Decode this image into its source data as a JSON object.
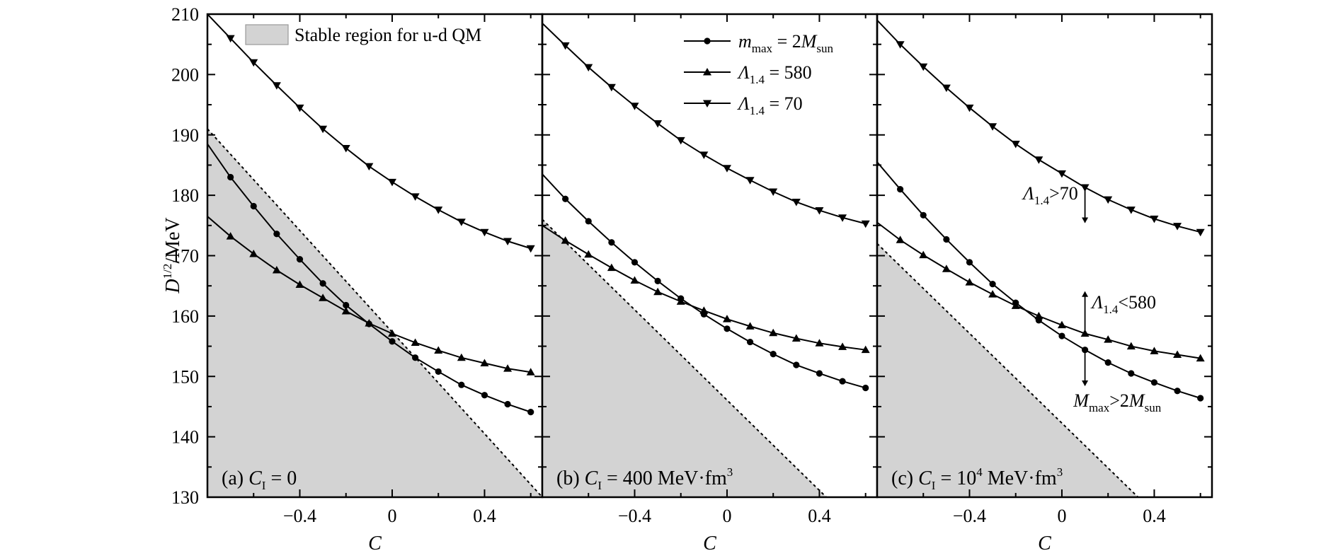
{
  "chart_data": {
    "type": "line",
    "y_axis": {
      "label_main": "D",
      "label_sup": "1/2",
      "label_rest": "/MeV",
      "ticks": [
        130,
        140,
        150,
        160,
        170,
        180,
        190,
        200,
        210
      ],
      "range": [
        130,
        210
      ]
    },
    "x_axis": {
      "label": "C",
      "ticks": [
        -0.4,
        0,
        0.4
      ],
      "tick_labels": [
        "−0.4",
        "0",
        "0.4"
      ],
      "range": [
        -0.8,
        0.65
      ]
    },
    "legend": {
      "shade_label": "Stable region for u-d QM",
      "entries": [
        {
          "marker": "circle",
          "main": "m",
          "sub1": "max",
          "mid": " = 2",
          "main2": "M",
          "sub2": "sun"
        },
        {
          "marker": "triangle-up",
          "main": "Λ",
          "sub1": "1.4",
          "mid": " = 580"
        },
        {
          "marker": "triangle-down",
          "main": "Λ",
          "sub1": "1.4",
          "mid": " = 70"
        }
      ]
    },
    "panels": [
      {
        "label_prefix": "(a) ",
        "label_var": "C",
        "label_sub": "I",
        "label_rest": " = 0",
        "label_sup": "",
        "label_tail": "",
        "boundary": {
          "x": [
            -0.8,
            0.65
          ],
          "y": [
            191,
            130
          ]
        },
        "series": [
          {
            "marker": "circle",
            "x": [
              -0.8,
              -0.7,
              -0.6,
              -0.5,
              -0.4,
              -0.3,
              -0.2,
              -0.1,
              0.0,
              0.1,
              0.2,
              0.3,
              0.4,
              0.5,
              0.6
            ],
            "y": [
              188.5,
              183.0,
              178.2,
              173.6,
              169.4,
              165.4,
              161.8,
              158.7,
              155.8,
              153.1,
              150.8,
              148.6,
              146.9,
              145.4,
              144.1
            ]
          },
          {
            "marker": "triangle-up",
            "x": [
              -0.8,
              -0.7,
              -0.6,
              -0.5,
              -0.4,
              -0.3,
              -0.2,
              -0.1,
              0.0,
              0.1,
              0.2,
              0.3,
              0.4,
              0.5,
              0.6
            ],
            "y": [
              176.5,
              173.2,
              170.3,
              167.6,
              165.2,
              163.0,
              160.8,
              158.8,
              157.1,
              155.6,
              154.3,
              153.1,
              152.2,
              151.3,
              150.7
            ]
          },
          {
            "marker": "triangle-down",
            "x": [
              -0.8,
              -0.7,
              -0.6,
              -0.5,
              -0.4,
              -0.3,
              -0.2,
              -0.1,
              0.0,
              0.1,
              0.2,
              0.3,
              0.4,
              0.5,
              0.6
            ],
            "y": [
              210.0,
              206.0,
              202.0,
              198.2,
              194.5,
              191.0,
              187.8,
              184.8,
              182.2,
              179.8,
              177.6,
              175.6,
              173.9,
              172.4,
              171.2
            ]
          }
        ],
        "annotations": []
      },
      {
        "label_prefix": "(b) ",
        "label_var": "C",
        "label_sub": "I",
        "label_rest": " = 400 MeV·fm",
        "label_sup": "3",
        "label_tail": "",
        "boundary": {
          "x": [
            -0.8,
            0.43
          ],
          "y": [
            176,
            130
          ]
        },
        "series": [
          {
            "marker": "circle",
            "x": [
              -0.8,
              -0.7,
              -0.6,
              -0.5,
              -0.4,
              -0.3,
              -0.2,
              -0.1,
              0.0,
              0.1,
              0.2,
              0.3,
              0.4,
              0.5,
              0.6
            ],
            "y": [
              183.5,
              179.4,
              175.7,
              172.2,
              168.9,
              165.8,
              162.9,
              160.3,
              157.9,
              155.7,
              153.7,
              151.9,
              150.5,
              149.2,
              148.1
            ]
          },
          {
            "marker": "triangle-up",
            "x": [
              -0.8,
              -0.7,
              -0.6,
              -0.5,
              -0.4,
              -0.3,
              -0.2,
              -0.1,
              0.0,
              0.1,
              0.2,
              0.3,
              0.4,
              0.5,
              0.6
            ],
            "y": [
              175.0,
              172.5,
              170.2,
              168.0,
              165.9,
              164.0,
              162.4,
              160.9,
              159.5,
              158.3,
              157.2,
              156.3,
              155.5,
              154.9,
              154.4
            ]
          },
          {
            "marker": "triangle-down",
            "x": [
              -0.8,
              -0.7,
              -0.6,
              -0.5,
              -0.4,
              -0.3,
              -0.2,
              -0.1,
              0.0,
              0.1,
              0.2,
              0.3,
              0.4,
              0.5,
              0.6
            ],
            "y": [
              208.5,
              204.8,
              201.2,
              197.9,
              194.8,
              191.9,
              189.1,
              186.7,
              184.5,
              182.5,
              180.6,
              178.9,
              177.5,
              176.3,
              175.3
            ]
          }
        ],
        "annotations": []
      },
      {
        "label_prefix": "(c) ",
        "label_var": "C",
        "label_sub": "I",
        "label_rest": " = 10",
        "label_sup": "4",
        "label_tail": " MeV·fm",
        "label_sup2": "3",
        "boundary": {
          "x": [
            -0.8,
            0.33
          ],
          "y": [
            172,
            130
          ]
        },
        "series": [
          {
            "marker": "circle",
            "x": [
              -0.8,
              -0.7,
              -0.6,
              -0.5,
              -0.4,
              -0.3,
              -0.2,
              -0.1,
              0.0,
              0.1,
              0.2,
              0.3,
              0.4,
              0.5,
              0.6
            ],
            "y": [
              185.5,
              181.0,
              176.7,
              172.7,
              168.9,
              165.3,
              162.2,
              159.3,
              156.7,
              154.4,
              152.3,
              150.5,
              149.0,
              147.6,
              146.4
            ]
          },
          {
            "marker": "triangle-up",
            "x": [
              -0.8,
              -0.7,
              -0.6,
              -0.5,
              -0.4,
              -0.3,
              -0.2,
              -0.1,
              0.0,
              0.1,
              0.2,
              0.3,
              0.4,
              0.5,
              0.6
            ],
            "y": [
              175.5,
              172.6,
              170.1,
              167.8,
              165.6,
              163.6,
              161.7,
              160.0,
              158.5,
              157.1,
              156.1,
              155.0,
              154.2,
              153.6,
              153.0
            ]
          },
          {
            "marker": "triangle-down",
            "x": [
              -0.8,
              -0.7,
              -0.6,
              -0.5,
              -0.4,
              -0.3,
              -0.2,
              -0.1,
              0.0,
              0.1,
              0.2,
              0.3,
              0.4,
              0.5,
              0.6
            ],
            "y": [
              209.0,
              205.0,
              201.3,
              197.8,
              194.5,
              191.4,
              188.5,
              185.9,
              183.6,
              181.3,
              179.3,
              177.6,
              176.1,
              174.9,
              173.9
            ]
          }
        ],
        "annotations": [
          {
            "main": "Λ",
            "sub": "1.4",
            "rest": ">70",
            "main2": "",
            "sub2": "",
            "x": 0.1,
            "y_from": 181.3,
            "y_to": 175.5,
            "dir": "down",
            "anchor": "end",
            "label_x": 0.07,
            "label_y": 179.3
          },
          {
            "main": "Λ",
            "sub": "1.4",
            "rest": "<580",
            "main2": "",
            "sub2": "",
            "x": 0.1,
            "y_from": 157.1,
            "y_to": 164.0,
            "dir": "up",
            "anchor": "start",
            "label_x": 0.13,
            "label_y": 161.3
          },
          {
            "main": "M",
            "sub": "max",
            "rest": ">2",
            "main2": "M",
            "sub2": "sun",
            "x": 0.1,
            "y_from": 154.4,
            "y_to": 148.5,
            "dir": "down",
            "anchor": "middle",
            "label_x": 0.24,
            "label_y": 145.0
          }
        ]
      }
    ]
  }
}
